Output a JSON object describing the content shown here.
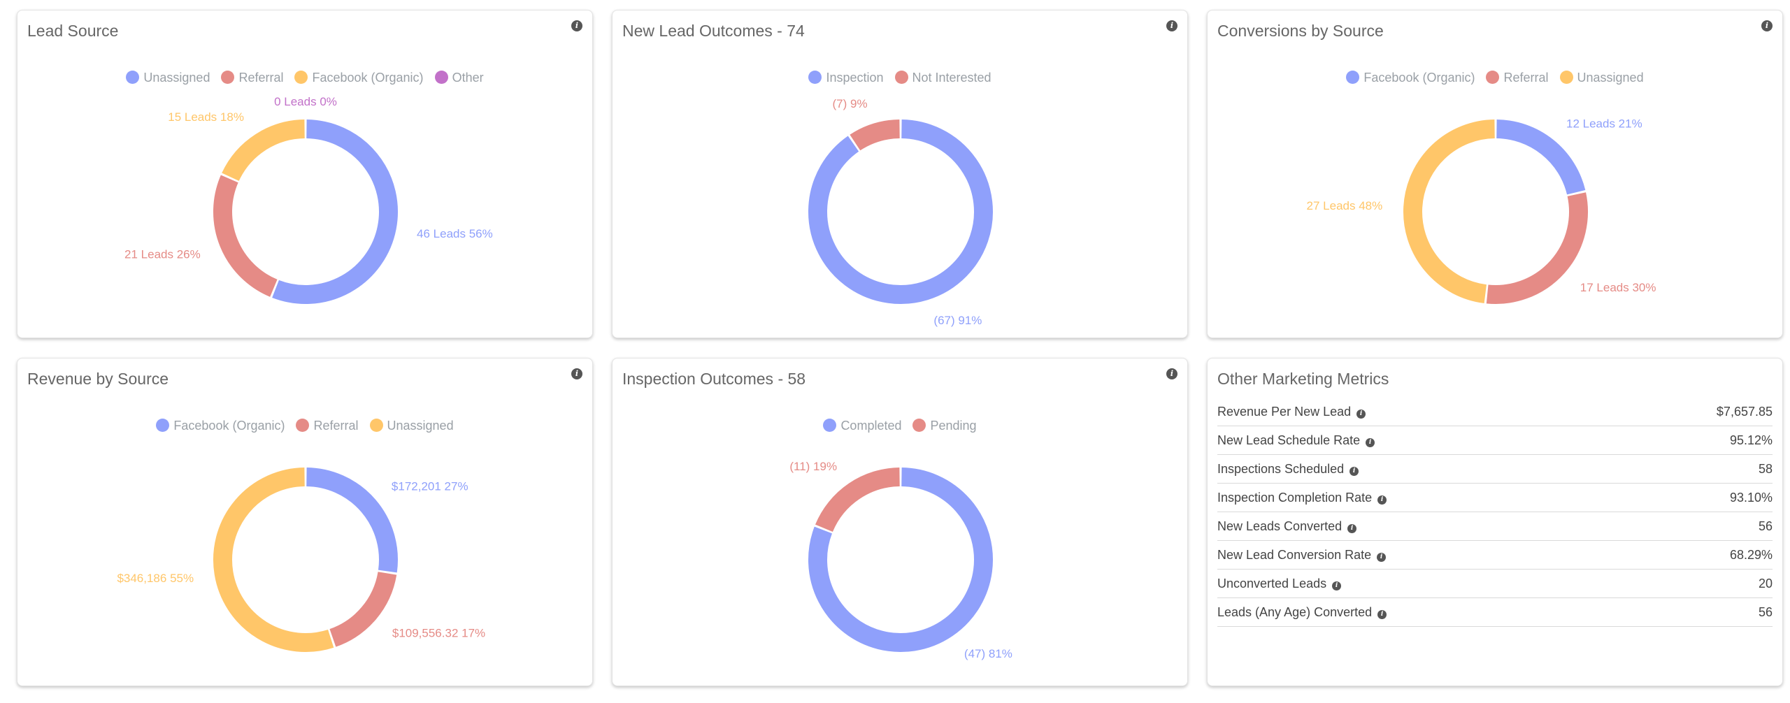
{
  "colors": {
    "blue": "#8fa0fb",
    "red": "#e58b86",
    "orange": "#ffc669",
    "purple": "#c271c9"
  },
  "chart_data": [
    {
      "type": "pie",
      "title": "Lead Source",
      "legend": [
        {
          "label": "Unassigned",
          "color": "#8fa0fb"
        },
        {
          "label": "Referral",
          "color": "#e58b86"
        },
        {
          "label": "Facebook (Organic)",
          "color": "#ffc669"
        },
        {
          "label": "Other",
          "color": "#c271c9"
        }
      ],
      "slices": [
        {
          "name": "Unassigned",
          "value": 46,
          "percent": 56,
          "label": "46 Leads 56%",
          "color": "#8fa0fb"
        },
        {
          "name": "Referral",
          "value": 21,
          "percent": 26,
          "label": "21 Leads 26%",
          "color": "#e58b86"
        },
        {
          "name": "Facebook (Organic)",
          "value": 15,
          "percent": 18,
          "label": "15 Leads 18%",
          "color": "#ffc669"
        },
        {
          "name": "Other",
          "value": 0,
          "percent": 0,
          "label": "0 Leads 0%",
          "color": "#c271c9"
        }
      ]
    },
    {
      "type": "pie",
      "title": "New Lead Outcomes -  74",
      "legend": [
        {
          "label": "Inspection",
          "color": "#8fa0fb"
        },
        {
          "label": "Not Interested",
          "color": "#e58b86"
        }
      ],
      "slices": [
        {
          "name": "Inspection",
          "value": 67,
          "percent": 91,
          "label": "(67) 91%",
          "color": "#8fa0fb"
        },
        {
          "name": "Not Interested",
          "value": 7,
          "percent": 9,
          "label": "(7) 9%",
          "color": "#e58b86"
        }
      ]
    },
    {
      "type": "pie",
      "title": "Conversions by Source",
      "legend": [
        {
          "label": "Facebook (Organic)",
          "color": "#8fa0fb"
        },
        {
          "label": "Referral",
          "color": "#e58b86"
        },
        {
          "label": "Unassigned",
          "color": "#ffc669"
        }
      ],
      "slices": [
        {
          "name": "Facebook (Organic)",
          "value": 12,
          "percent": 21,
          "label": "12 Leads 21%",
          "color": "#8fa0fb"
        },
        {
          "name": "Referral",
          "value": 17,
          "percent": 30,
          "label": "17 Leads 30%",
          "color": "#e58b86"
        },
        {
          "name": "Unassigned",
          "value": 27,
          "percent": 48,
          "label": "27 Leads 48%",
          "color": "#ffc669"
        }
      ]
    },
    {
      "type": "pie",
      "title": "Revenue by Source",
      "legend": [
        {
          "label": "Facebook (Organic)",
          "color": "#8fa0fb"
        },
        {
          "label": "Referral",
          "color": "#e58b86"
        },
        {
          "label": "Unassigned",
          "color": "#ffc669"
        }
      ],
      "slices": [
        {
          "name": "Facebook (Organic)",
          "value": 172201,
          "percent": 27,
          "label": "$172,201 27%",
          "color": "#8fa0fb"
        },
        {
          "name": "Referral",
          "value": 109556.32,
          "percent": 17,
          "label": "$109,556.32 17%",
          "color": "#e58b86"
        },
        {
          "name": "Unassigned",
          "value": 346186,
          "percent": 55,
          "label": "$346,186 55%",
          "color": "#ffc669"
        }
      ]
    },
    {
      "type": "pie",
      "title": "Inspection Outcomes -  58",
      "legend": [
        {
          "label": "Completed",
          "color": "#8fa0fb"
        },
        {
          "label": "Pending",
          "color": "#e58b86"
        }
      ],
      "slices": [
        {
          "name": "Completed",
          "value": 47,
          "percent": 81,
          "label": "(47) 81%",
          "color": "#8fa0fb"
        },
        {
          "name": "Pending",
          "value": 11,
          "percent": 19,
          "label": "(11) 19%",
          "color": "#e58b86"
        }
      ]
    }
  ],
  "metrics": {
    "title": "Other Marketing Metrics",
    "rows": [
      {
        "label": "Revenue Per New Lead",
        "value": "$7,657.85"
      },
      {
        "label": "New Lead Schedule Rate",
        "value": "95.12%"
      },
      {
        "label": "Inspections Scheduled",
        "value": "58"
      },
      {
        "label": "Inspection Completion Rate",
        "value": "93.10%"
      },
      {
        "label": "New Leads Converted",
        "value": "56"
      },
      {
        "label": "New Lead Conversion Rate",
        "value": "68.29%"
      },
      {
        "label": "Unconverted Leads",
        "value": "20"
      },
      {
        "label": "Leads (Any Age) Converted",
        "value": "56"
      }
    ]
  }
}
